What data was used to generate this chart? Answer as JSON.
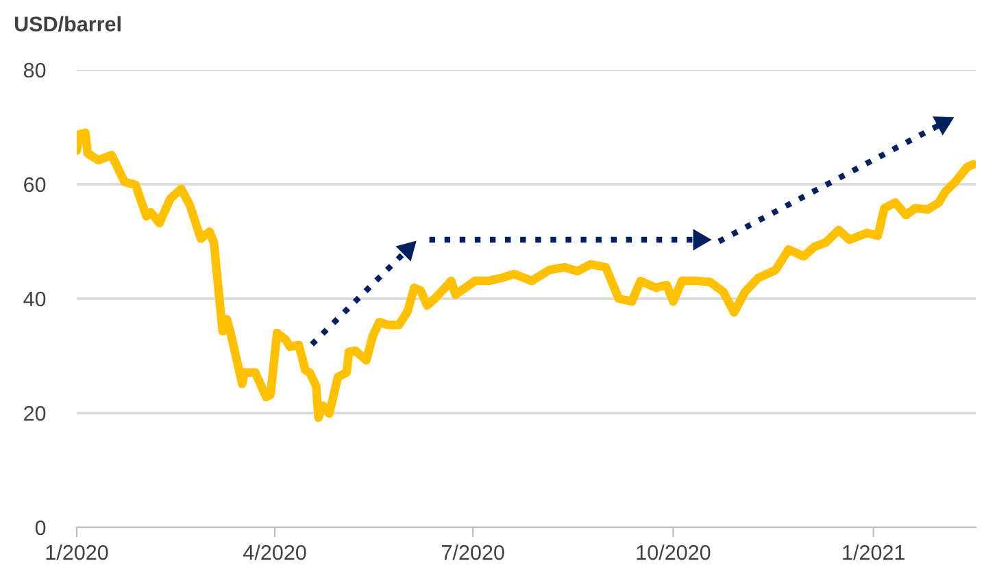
{
  "chart_data": {
    "type": "line",
    "ylabel": "USD/barrel",
    "xlim": [
      "2020-01-01",
      "2021-02-17"
    ],
    "xticks": [
      {
        "value": "2020-01-01",
        "label": "1/2020"
      },
      {
        "value": "2020-04-01",
        "label": "4/2020"
      },
      {
        "value": "2020-07-01",
        "label": "7/2020"
      },
      {
        "value": "2020-10-01",
        "label": "10/2020"
      },
      {
        "value": "2021-01-01",
        "label": "1/2021"
      }
    ],
    "ylim": [
      0,
      80
    ],
    "yticks": [
      0,
      20,
      40,
      60,
      80
    ],
    "grid": "y",
    "legend": false,
    "series": [
      {
        "color": "#ffc000",
        "x": [
          "2020-01-01",
          "2020-01-02",
          "2020-01-05",
          "2020-01-06",
          "2020-01-11",
          "2020-01-17",
          "2020-01-23",
          "2020-01-28",
          "2020-02-02",
          "2020-02-04",
          "2020-02-08",
          "2020-02-13",
          "2020-02-18",
          "2020-02-22",
          "2020-02-27",
          "2020-03-02",
          "2020-03-04",
          "2020-03-08",
          "2020-03-10",
          "2020-03-12",
          "2020-03-17",
          "2020-03-18",
          "2020-03-23",
          "2020-03-28",
          "2020-03-30",
          "2020-04-02",
          "2020-04-06",
          "2020-04-08",
          "2020-04-12",
          "2020-04-15",
          "2020-04-17",
          "2020-04-20",
          "2020-04-21",
          "2020-04-23",
          "2020-04-26",
          "2020-04-30",
          "2020-05-04",
          "2020-05-05",
          "2020-05-08",
          "2020-05-13",
          "2020-05-16",
          "2020-05-19",
          "2020-05-23",
          "2020-05-28",
          "2020-06-01",
          "2020-06-04",
          "2020-06-07",
          "2020-06-10",
          "2020-06-14",
          "2020-06-21",
          "2020-06-23",
          "2020-07-02",
          "2020-07-08",
          "2020-07-14",
          "2020-07-20",
          "2020-07-28",
          "2020-08-05",
          "2020-08-12",
          "2020-08-18",
          "2020-08-24",
          "2020-08-31",
          "2020-09-06",
          "2020-09-12",
          "2020-09-16",
          "2020-09-23",
          "2020-09-28",
          "2020-10-01",
          "2020-10-05",
          "2020-10-12",
          "2020-10-18",
          "2020-10-24",
          "2020-10-29",
          "2020-11-03",
          "2020-11-09",
          "2020-11-17",
          "2020-11-23",
          "2020-11-30",
          "2020-12-05",
          "2020-12-10",
          "2020-12-16",
          "2020-12-21",
          "2020-12-29",
          "2021-01-03",
          "2021-01-06",
          "2021-01-11",
          "2021-01-16",
          "2021-01-20",
          "2021-01-26",
          "2021-01-31",
          "2021-02-03",
          "2021-02-08",
          "2021-02-13",
          "2021-02-16"
        ],
        "values": [
          65.9,
          68.7,
          69,
          65.4,
          64.2,
          65.1,
          60.4,
          59.9,
          54.4,
          55.1,
          53.2,
          57.5,
          59.2,
          56.3,
          50.5,
          51.7,
          49.8,
          34.3,
          36.4,
          33.5,
          25.1,
          27.1,
          27.1,
          22.8,
          23.2,
          34.0,
          32.8,
          31.6,
          31.9,
          27.5,
          27.1,
          24.7,
          19.2,
          21.3,
          19.9,
          26.3,
          27.1,
          30.7,
          30.9,
          29.2,
          33.5,
          35.9,
          35.4,
          35.4,
          37.8,
          41.9,
          41.4,
          38.8,
          40.2,
          43.1,
          40.7,
          43.1,
          43.1,
          43.6,
          44.3,
          43.1,
          45.0,
          45.5,
          44.8,
          46.0,
          45.5,
          40.0,
          39.5,
          43.1,
          41.9,
          42.4,
          39.5,
          43.1,
          43.1,
          42.9,
          41.2,
          37.6,
          41.2,
          43.6,
          45.0,
          48.6,
          47.4,
          49.1,
          49.8,
          52.0,
          50.3,
          51.5,
          51.0,
          55.8,
          56.8,
          54.6,
          55.8,
          55.6,
          56.8,
          58.7,
          60.6,
          63.0,
          63.5
        ]
      },
      {
        "color": "#002060",
        "line_style": "dotted",
        "marker": "triangle",
        "x": [
          "2020-04-18",
          "2020-06-01"
        ],
        "values": [
          32,
          48.6
        ]
      },
      {
        "color": "#002060",
        "line_style": "dotted",
        "marker": "triangle",
        "x": [
          "2020-06-11",
          "2020-10-13"
        ],
        "values": [
          50.3,
          50.3
        ]
      },
      {
        "color": "#002060",
        "line_style": "dotted",
        "marker": "triangle",
        "x": [
          "2020-10-22",
          "2021-02-02"
        ],
        "values": [
          50,
          70.7
        ]
      }
    ]
  }
}
